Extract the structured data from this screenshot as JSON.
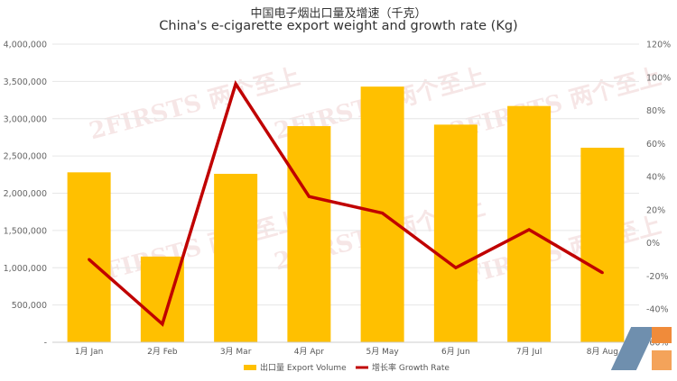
{
  "title_cn": "中国电子烟出口量及增速（千克）",
  "title_en": "China's e-cigarette export weight and growth rate (Kg)",
  "watermark": "2FIRSTS 两个至上",
  "watermark_brand": "蓝洞",
  "colors": {
    "bar": "#ffc000",
    "line": "#c00000",
    "grid": "#e6e6e6"
  },
  "chart_data": {
    "type": "bar",
    "title": "China's e-cigarette export weight and growth rate (Kg)",
    "categories": [
      "1月 Jan",
      "2月 Feb",
      "3月 Mar",
      "4月 Apr",
      "5月 May",
      "6月 Jun",
      "7月 Jul",
      "8月 Aug"
    ],
    "series": [
      {
        "name": "出口量 Export Volume",
        "type": "bar",
        "axis": "left",
        "values": [
          2280000,
          1150000,
          2260000,
          2900000,
          3430000,
          2920000,
          3170000,
          2610000
        ]
      },
      {
        "name": "增长率 Growth Rate",
        "type": "line",
        "axis": "right",
        "values": [
          -10,
          -49,
          96,
          28,
          18,
          -15,
          8,
          -18
        ]
      }
    ],
    "y_left": {
      "ylim": [
        0,
        4000000
      ],
      "ticks": [
        "-",
        "500,000",
        "1,000,000",
        "1,500,000",
        "2,000,000",
        "2,500,000",
        "3,000,000",
        "3,500,000",
        "4,000,000"
      ]
    },
    "y_right": {
      "ylim": [
        -60,
        120
      ],
      "ticks": [
        "-60%",
        "-40%",
        "-20%",
        "0%",
        "20%",
        "40%",
        "60%",
        "80%",
        "100%",
        "120%"
      ]
    },
    "legend_position": "bottom",
    "grid": true
  }
}
